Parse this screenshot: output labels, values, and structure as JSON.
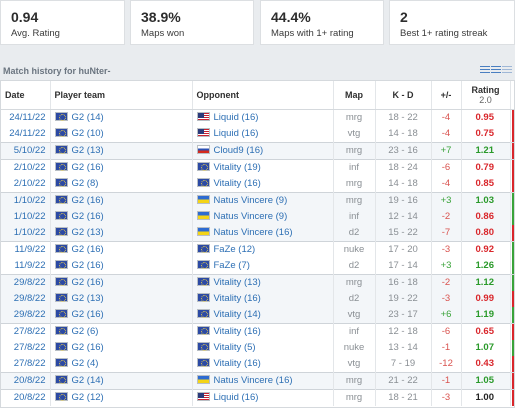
{
  "stats": [
    {
      "value": "0.94",
      "label": "Avg. Rating"
    },
    {
      "value": "38.9%",
      "label": "Maps won"
    },
    {
      "value": "44.4%",
      "label": "Maps with 1+ rating"
    },
    {
      "value": "2",
      "label": "Best 1+ rating streak"
    }
  ],
  "history": {
    "title": "Match history for huNter-",
    "columns": {
      "date": "Date",
      "team": "Player team",
      "opponent": "Opponent",
      "map": "Map",
      "kd": "K - D",
      "pm": "+/-",
      "rating": "Rating",
      "rating_version": "2.0"
    }
  },
  "colors": {
    "win": "#3aa33a",
    "loss": "#d9262b",
    "link": "#2d6fb4"
  },
  "rows": [
    {
      "date": "24/11/22",
      "team": "G2 (14)",
      "team_flag": "eu",
      "opp": "Liquid (16)",
      "opp_flag": "us",
      "map": "mrg",
      "kd": "18 - 22",
      "pm": "-4",
      "rating": "0.95",
      "result": "loss",
      "group": 0
    },
    {
      "date": "24/11/22",
      "team": "G2 (10)",
      "team_flag": "eu",
      "opp": "Liquid (16)",
      "opp_flag": "us",
      "map": "vtg",
      "kd": "14 - 18",
      "pm": "-4",
      "rating": "0.75",
      "result": "loss",
      "group": 0
    },
    {
      "date": "5/10/22",
      "team": "G2 (13)",
      "team_flag": "eu",
      "opp": "Cloud9 (16)",
      "opp_flag": "ru",
      "map": "mrg",
      "kd": "23 - 16",
      "pm": "+7",
      "rating": "1.21",
      "result": "loss",
      "group": 1
    },
    {
      "date": "2/10/22",
      "team": "G2 (16)",
      "team_flag": "eu",
      "opp": "Vitality (19)",
      "opp_flag": "eu",
      "map": "inf",
      "kd": "18 - 24",
      "pm": "-6",
      "rating": "0.79",
      "result": "loss",
      "group": 0
    },
    {
      "date": "2/10/22",
      "team": "G2 (8)",
      "team_flag": "eu",
      "opp": "Vitality (16)",
      "opp_flag": "eu",
      "map": "mrg",
      "kd": "14 - 18",
      "pm": "-4",
      "rating": "0.85",
      "result": "loss",
      "group": 0
    },
    {
      "date": "1/10/22",
      "team": "G2 (16)",
      "team_flag": "eu",
      "opp": "Natus Vincere (9)",
      "opp_flag": "ua",
      "map": "mrg",
      "kd": "19 - 16",
      "pm": "+3",
      "rating": "1.03",
      "result": "win",
      "group": 1
    },
    {
      "date": "1/10/22",
      "team": "G2 (16)",
      "team_flag": "eu",
      "opp": "Natus Vincere (9)",
      "opp_flag": "ua",
      "map": "inf",
      "kd": "12 - 14",
      "pm": "-2",
      "rating": "0.86",
      "result": "win",
      "group": 1
    },
    {
      "date": "1/10/22",
      "team": "G2 (13)",
      "team_flag": "eu",
      "opp": "Natus Vincere (16)",
      "opp_flag": "ua",
      "map": "d2",
      "kd": "15 - 22",
      "pm": "-7",
      "rating": "0.80",
      "result": "loss",
      "group": 1
    },
    {
      "date": "11/9/22",
      "team": "G2 (16)",
      "team_flag": "eu",
      "opp": "FaZe (12)",
      "opp_flag": "eu",
      "map": "nuke",
      "kd": "17 - 20",
      "pm": "-3",
      "rating": "0.92",
      "result": "win",
      "group": 0
    },
    {
      "date": "11/9/22",
      "team": "G2 (16)",
      "team_flag": "eu",
      "opp": "FaZe (7)",
      "opp_flag": "eu",
      "map": "d2",
      "kd": "17 - 14",
      "pm": "+3",
      "rating": "1.26",
      "result": "win",
      "group": 0
    },
    {
      "date": "29/8/22",
      "team": "G2 (16)",
      "team_flag": "eu",
      "opp": "Vitality (13)",
      "opp_flag": "eu",
      "map": "mrg",
      "kd": "16 - 18",
      "pm": "-2",
      "rating": "1.12",
      "result": "win",
      "group": 1
    },
    {
      "date": "29/8/22",
      "team": "G2 (13)",
      "team_flag": "eu",
      "opp": "Vitality (16)",
      "opp_flag": "eu",
      "map": "d2",
      "kd": "19 - 22",
      "pm": "-3",
      "rating": "0.99",
      "result": "loss",
      "group": 1
    },
    {
      "date": "29/8/22",
      "team": "G2 (16)",
      "team_flag": "eu",
      "opp": "Vitality (14)",
      "opp_flag": "eu",
      "map": "vtg",
      "kd": "23 - 17",
      "pm": "+6",
      "rating": "1.19",
      "result": "win",
      "group": 1
    },
    {
      "date": "27/8/22",
      "team": "G2 (6)",
      "team_flag": "eu",
      "opp": "Vitality (16)",
      "opp_flag": "eu",
      "map": "inf",
      "kd": "12 - 18",
      "pm": "-6",
      "rating": "0.65",
      "result": "loss",
      "group": 0
    },
    {
      "date": "27/8/22",
      "team": "G2 (16)",
      "team_flag": "eu",
      "opp": "Vitality (5)",
      "opp_flag": "eu",
      "map": "nuke",
      "kd": "13 - 14",
      "pm": "-1",
      "rating": "1.07",
      "result": "win",
      "group": 0
    },
    {
      "date": "27/8/22",
      "team": "G2 (4)",
      "team_flag": "eu",
      "opp": "Vitality (16)",
      "opp_flag": "eu",
      "map": "vtg",
      "kd": "7 - 19",
      "pm": "-12",
      "rating": "0.43",
      "result": "loss",
      "group": 0
    },
    {
      "date": "20/8/22",
      "team": "G2 (14)",
      "team_flag": "eu",
      "opp": "Natus Vincere (16)",
      "opp_flag": "ua",
      "map": "mrg",
      "kd": "21 - 22",
      "pm": "-1",
      "rating": "1.05",
      "result": "loss",
      "group": 1
    },
    {
      "date": "20/8/22",
      "team": "G2 (12)",
      "team_flag": "eu",
      "opp": "Liquid (16)",
      "opp_flag": "us",
      "map": "mrg",
      "kd": "18 - 21",
      "pm": "-3",
      "rating": "1.00",
      "result": "loss",
      "group": 0
    }
  ]
}
